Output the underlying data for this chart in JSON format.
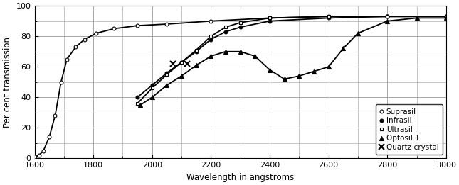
{
  "xlabel": "Wavelength in angstroms",
  "ylabel": "Per cent transmission",
  "xlim": [
    1600,
    3000
  ],
  "ylim": [
    0,
    100
  ],
  "xticks": [
    1600,
    1800,
    2000,
    2200,
    2400,
    2600,
    2800,
    3000
  ],
  "yticks": [
    0,
    20,
    40,
    60,
    80,
    100
  ],
  "suprasil": {
    "x": [
      1600,
      1615,
      1630,
      1650,
      1670,
      1690,
      1710,
      1740,
      1770,
      1810,
      1870,
      1950,
      2050,
      2200,
      2400,
      2600,
      2800,
      3000
    ],
    "y": [
      1,
      2,
      5,
      14,
      28,
      50,
      65,
      73,
      78,
      82,
      85,
      87,
      88,
      90,
      92,
      93,
      93,
      93
    ]
  },
  "infrasil": {
    "x": [
      1950,
      2000,
      2050,
      2100,
      2150,
      2200,
      2250,
      2300,
      2400,
      2600,
      2800,
      3000
    ],
    "y": [
      40,
      48,
      56,
      63,
      70,
      78,
      83,
      86,
      90,
      92,
      93,
      93
    ]
  },
  "ultrasil": {
    "x": [
      1950,
      2000,
      2050,
      2100,
      2150,
      2200,
      2250,
      2300,
      2400,
      2600,
      2800,
      3000
    ],
    "y": [
      36,
      46,
      55,
      63,
      71,
      80,
      86,
      89,
      92,
      93,
      93,
      93
    ]
  },
  "optosil": {
    "x": [
      1960,
      2000,
      2050,
      2100,
      2150,
      2200,
      2250,
      2300,
      2350,
      2400,
      2450,
      2500,
      2550,
      2600,
      2650,
      2700,
      2800,
      2900,
      3000
    ],
    "y": [
      35,
      40,
      48,
      54,
      61,
      67,
      70,
      70,
      67,
      58,
      52,
      54,
      57,
      60,
      72,
      82,
      90,
      92,
      92
    ]
  },
  "quartz": {
    "x": [
      2070,
      2120
    ],
    "y": [
      62,
      62
    ]
  },
  "legend_labels": [
    "Suprasil",
    "Infrasil",
    "Ultrasil",
    "Optosil 1",
    "Quartz crystal"
  ],
  "color": "black",
  "background": "white",
  "grid_color": "#999999"
}
